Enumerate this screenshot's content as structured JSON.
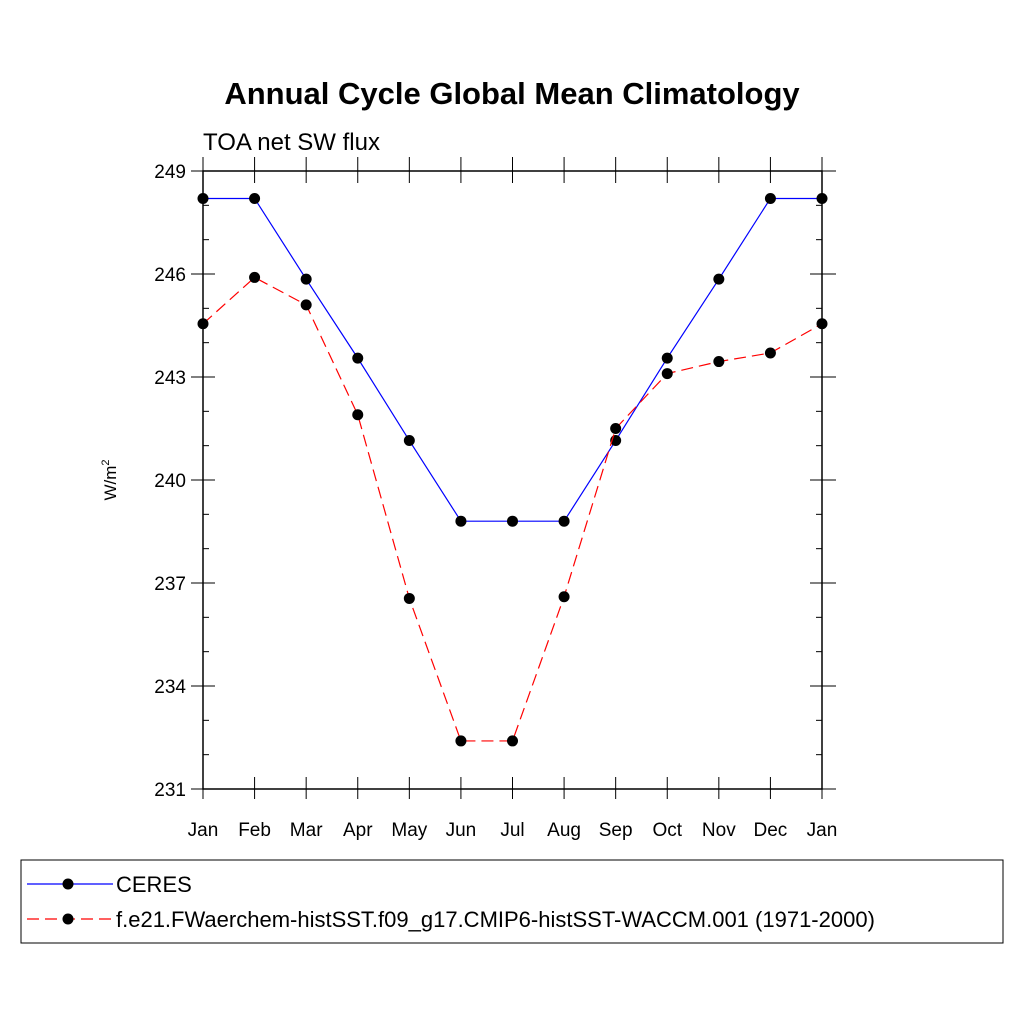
{
  "chart_data": {
    "type": "line",
    "title": "Annual Cycle Global Mean Climatology",
    "subtitle": "TOA net SW flux",
    "xlabel": "",
    "ylabel": "W/m",
    "ylabel_sup": "2",
    "categories": [
      "Jan",
      "Feb",
      "Mar",
      "Apr",
      "May",
      "Jun",
      "Jul",
      "Aug",
      "Sep",
      "Oct",
      "Nov",
      "Dec",
      "Jan"
    ],
    "ylim": [
      231,
      249
    ],
    "yticks": [
      231,
      234,
      237,
      240,
      243,
      246,
      249
    ],
    "ytick_labels": [
      "231",
      "234",
      "237",
      "240",
      "243",
      "246",
      "249"
    ],
    "grid": false,
    "legend_position": "bottom",
    "series": [
      {
        "name": "CERES",
        "color": "#0000ff",
        "dash": "solid",
        "values": [
          248.2,
          248.2,
          245.85,
          243.55,
          241.15,
          238.8,
          238.8,
          238.8,
          241.15,
          243.55,
          245.85,
          248.2,
          248.2
        ]
      },
      {
        "name": "f.e21.FWaerchem-histSST.f09_g17.CMIP6-histSST-WACCM.001 (1971-2000)",
        "color": "#ff0000",
        "dash": "dashed",
        "values": [
          244.55,
          245.9,
          245.1,
          241.9,
          236.55,
          232.4,
          232.4,
          236.6,
          241.5,
          243.1,
          243.45,
          243.7,
          244.55
        ]
      }
    ]
  }
}
